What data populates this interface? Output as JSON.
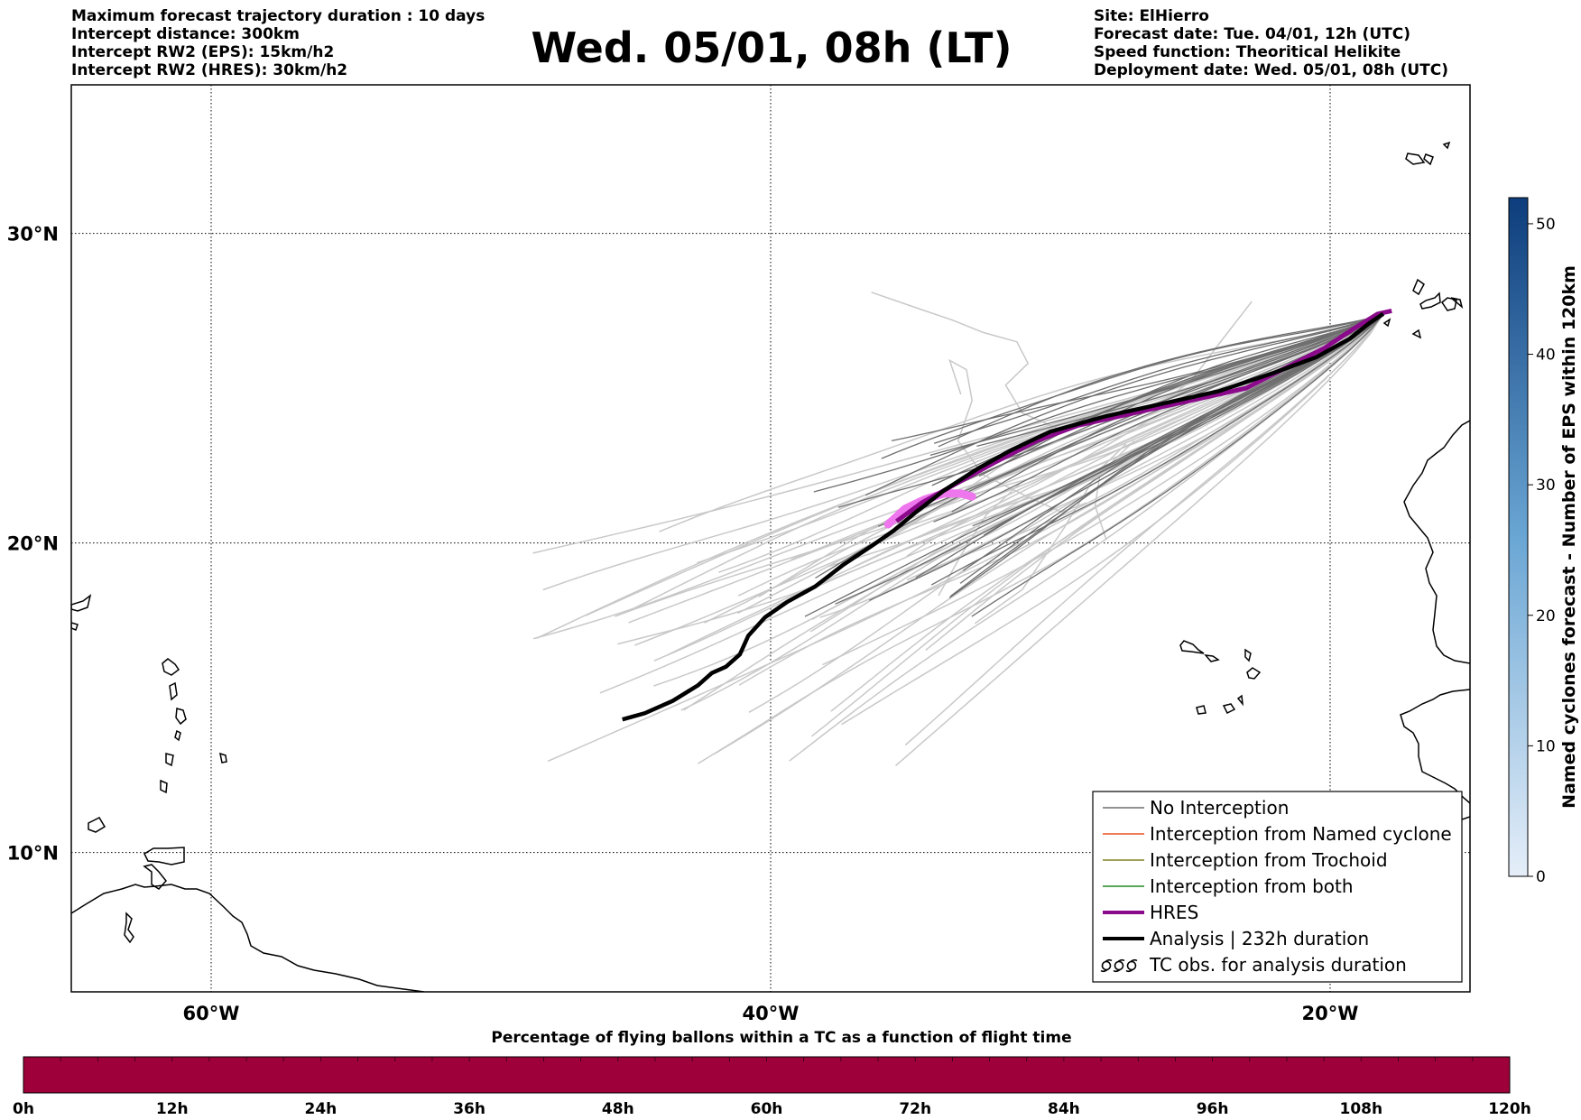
{
  "header": {
    "left_lines": [
      "Maximum forecast trajectory duration : 10 days",
      "Intercept distance: 300km",
      "Intercept RW2 (EPS):  15km/h2",
      "Intercept RW2 (HRES): 30km/h2"
    ],
    "title": "Wed. 05/01, 08h (LT)",
    "right_lines": [
      "Site: ElHierro",
      "Forecast date: Tue. 04/01, 12h (UTC)",
      "Speed function: Theoritical Helikite",
      "Deployment date: Wed. 05/01, 08h (UTC)"
    ]
  },
  "map": {
    "lon_range": [
      -65,
      -15
    ],
    "lat_range": [
      5.5,
      34.8
    ],
    "lat_labels": [
      "30°N",
      "20°N",
      "10°N"
    ],
    "lon_labels": [
      "60°W",
      "40°W",
      "20°W"
    ],
    "colors": {
      "eps_gray": "#c8c8c8",
      "no_interception": "#6e6e6e",
      "named_cyclone": "#e8521e",
      "trochoid": "#808020",
      "both": "#228b22",
      "hres": "#8b0a8b",
      "analysis": "#000000",
      "hres_start": "#ee77ee"
    },
    "analysis_track": [
      [
        -45.3,
        14.3
      ],
      [
        -44.5,
        14.5
      ],
      [
        -43.5,
        14.9
      ],
      [
        -42.6,
        15.4
      ],
      [
        -42.1,
        15.8
      ],
      [
        -41.6,
        16.0
      ],
      [
        -41.1,
        16.4
      ],
      [
        -40.8,
        17.0
      ],
      [
        -40.2,
        17.6
      ],
      [
        -39.4,
        18.1
      ],
      [
        -38.4,
        18.6
      ],
      [
        -37.4,
        19.3
      ],
      [
        -36.4,
        19.9
      ],
      [
        -35.6,
        20.4
      ],
      [
        -34.8,
        21.0
      ],
      [
        -33.8,
        21.7
      ],
      [
        -32.6,
        22.4
      ],
      [
        -31.4,
        23.0
      ],
      [
        -30.0,
        23.6
      ],
      [
        -28.0,
        24.1
      ],
      [
        -26.0,
        24.5
      ],
      [
        -24.0,
        24.9
      ],
      [
        -22.0,
        25.5
      ],
      [
        -20.5,
        26.0
      ],
      [
        -19.3,
        26.6
      ],
      [
        -18.6,
        27.1
      ],
      [
        -18.1,
        27.4
      ]
    ],
    "hres_track": [
      [
        -35.5,
        20.7
      ],
      [
        -34.6,
        21.3
      ],
      [
        -33.4,
        21.9
      ],
      [
        -32.0,
        22.6
      ],
      [
        -30.5,
        23.3
      ],
      [
        -29.0,
        23.8
      ],
      [
        -27.0,
        24.2
      ],
      [
        -25.0,
        24.6
      ],
      [
        -23.0,
        25.0
      ],
      [
        -21.5,
        25.7
      ],
      [
        -20.2,
        26.3
      ],
      [
        -19.2,
        26.9
      ],
      [
        -18.3,
        27.4
      ],
      [
        -17.8,
        27.5
      ]
    ],
    "hres_start_track": [
      [
        -35.8,
        20.6
      ],
      [
        -35.2,
        21.1
      ],
      [
        -34.5,
        21.4
      ],
      [
        -33.8,
        21.6
      ],
      [
        -33.2,
        21.6
      ],
      [
        -32.8,
        21.5
      ]
    ]
  },
  "legend": {
    "items": [
      {
        "label": "No Interception",
        "color": "#6e6e6e",
        "width": 1.5,
        "style": "line"
      },
      {
        "label": "Interception from Named cyclone",
        "color": "#e8521e",
        "width": 1.5,
        "style": "line"
      },
      {
        "label": "Interception from Trochoid",
        "color": "#808020",
        "width": 1.5,
        "style": "line"
      },
      {
        "label": "Interception from both",
        "color": "#228b22",
        "width": 1.5,
        "style": "line"
      },
      {
        "label": "HRES",
        "color": "#8b0a8b",
        "width": 4,
        "style": "line"
      },
      {
        "label": "Analysis | 232h duration",
        "color": "#000000",
        "width": 4,
        "style": "line"
      },
      {
        "label": "TC obs. for analysis duration",
        "color": "#000000",
        "width": 1,
        "style": "tc-symbol"
      }
    ]
  },
  "colorbar_right": {
    "title": "Named cyclones forecast - Number of EPS within 120km",
    "ticks": [
      "0",
      "10",
      "20",
      "30",
      "40",
      "50"
    ],
    "range": [
      0,
      52
    ],
    "color_low": "#e5eef9",
    "color_high": "#0d3d7c"
  },
  "colorbar_bottom": {
    "title": "Percentage of flying ballons within a TC as a function of flight time",
    "ticks": [
      "0h",
      "12h",
      "24h",
      "36h",
      "48h",
      "60h",
      "72h",
      "84h",
      "96h",
      "108h",
      "120h"
    ],
    "fill_color": "#9e003a",
    "fill_fraction": 1.0
  }
}
